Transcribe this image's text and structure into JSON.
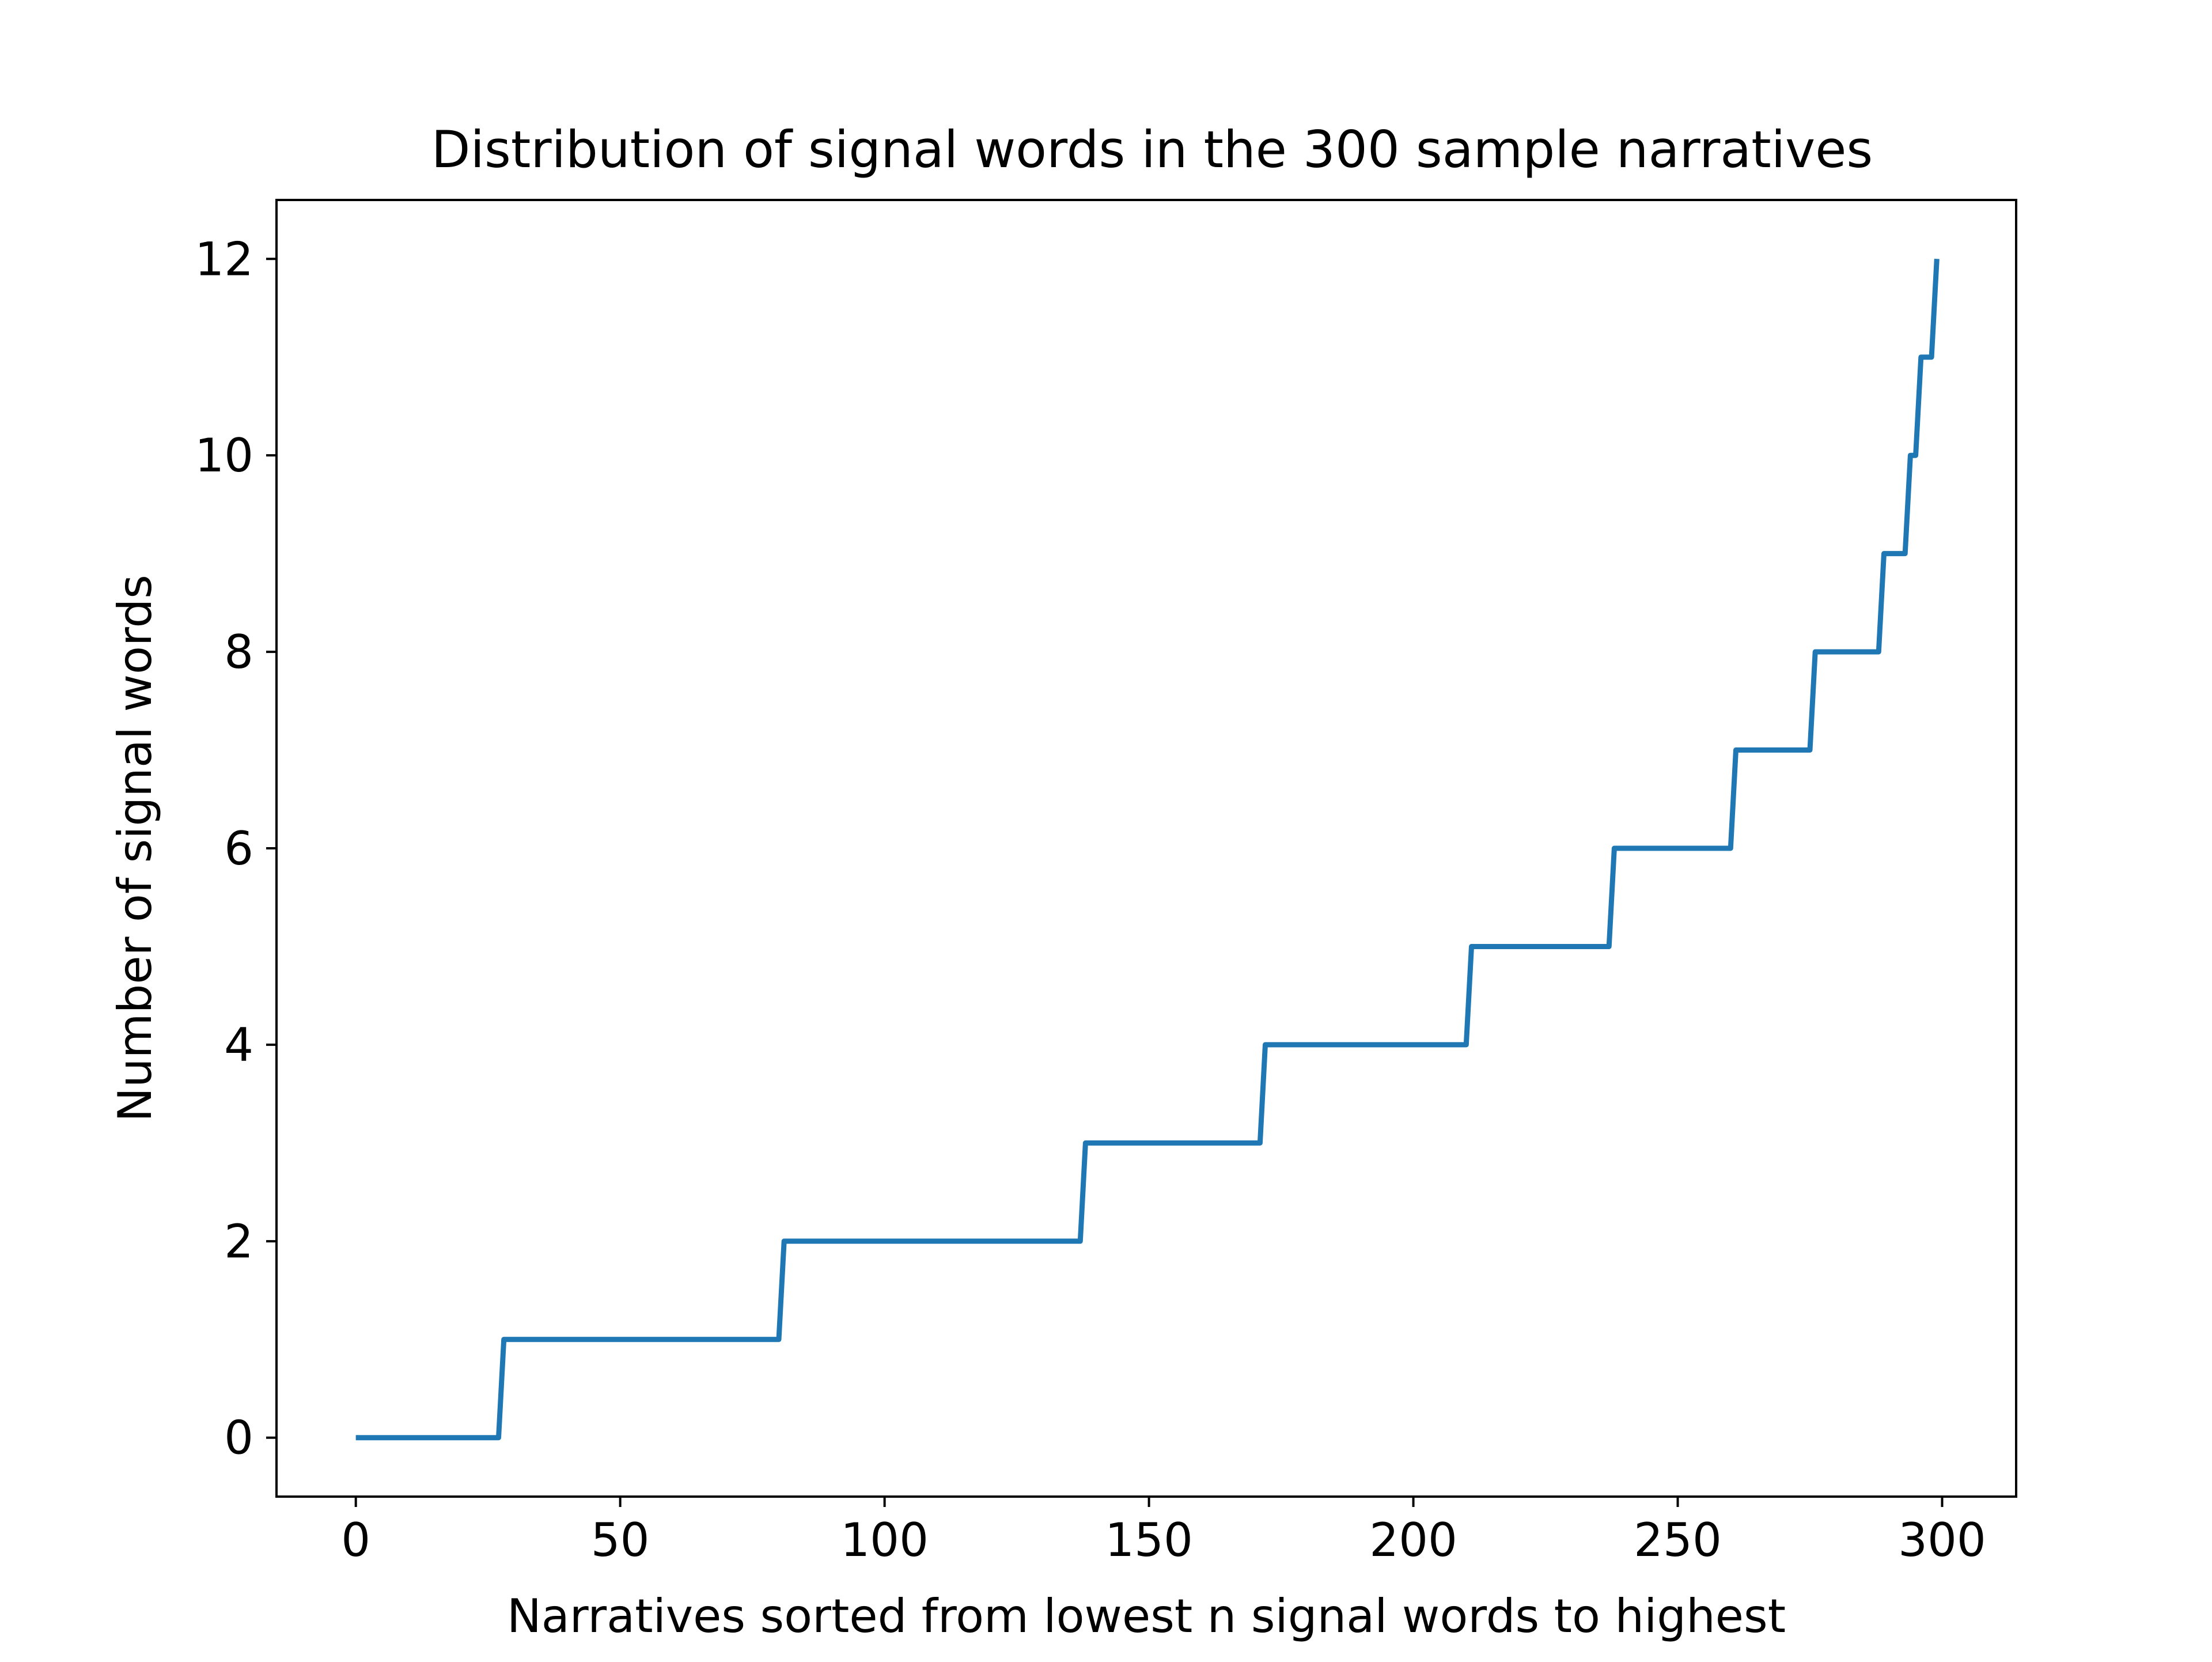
{
  "chart_data": {
    "type": "line",
    "title": "Distribution of signal words in the 300 sample narratives",
    "xlabel": "Narratives sorted from lowest n signal words to highest",
    "ylabel": "Number of signal words",
    "xlim": [
      -15,
      314
    ],
    "ylim": [
      -0.6,
      12.6
    ],
    "x_ticks": [
      0,
      50,
      100,
      150,
      200,
      250,
      300
    ],
    "y_ticks": [
      0,
      2,
      4,
      6,
      8,
      10,
      12
    ],
    "grid": false,
    "legend": "none",
    "series": [
      {
        "color": "#1f77b4",
        "x": [
          0,
          27,
          28,
          80,
          81,
          137,
          138,
          171,
          172,
          210,
          211,
          237,
          238,
          260,
          261,
          275,
          276,
          288,
          289,
          293,
          294,
          295,
          296,
          298,
          299
        ],
        "y": [
          0,
          0,
          1,
          1,
          2,
          2,
          3,
          3,
          4,
          4,
          5,
          5,
          6,
          6,
          7,
          7,
          8,
          8,
          9,
          9,
          10,
          10,
          11,
          11,
          12
        ]
      }
    ]
  }
}
